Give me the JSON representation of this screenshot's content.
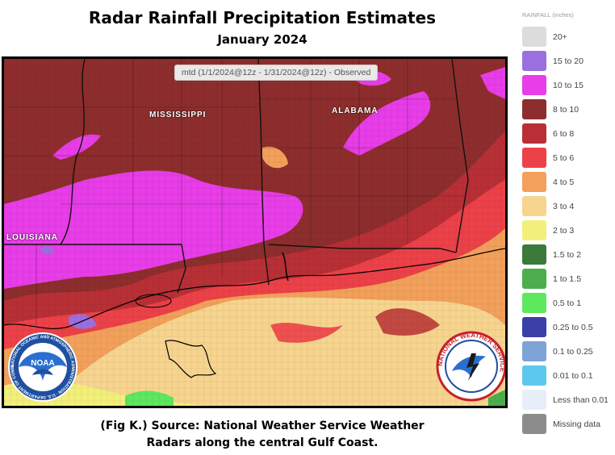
{
  "header": {
    "title": "Radar Rainfall Precipitation Estimates",
    "subtitle": "January 2024"
  },
  "map": {
    "period_label": "mtd (1/1/2024@12z - 1/31/2024@12z) - Observed",
    "state_labels": [
      "MISSISSIPPI",
      "ALABAMA",
      "LOUISIANA"
    ],
    "water_color": "#a9d9e8"
  },
  "legend": {
    "title": "RAINFALL (inches)",
    "items": [
      {
        "label": "20+",
        "color": "#dcdcdc"
      },
      {
        "label": "15 to 20",
        "color": "#9b6fe0"
      },
      {
        "label": "10 to 15",
        "color": "#e83de8"
      },
      {
        "label": "8 to 10",
        "color": "#8e2d2d"
      },
      {
        "label": "6 to 8",
        "color": "#b83035"
      },
      {
        "label": "5 to 6",
        "color": "#ec4148"
      },
      {
        "label": "4 to 5",
        "color": "#f2a05b"
      },
      {
        "label": "3 to 4",
        "color": "#f7d58f"
      },
      {
        "label": "2 to 3",
        "color": "#f2f07a"
      },
      {
        "label": "1.5 to 2",
        "color": "#3b7a3b"
      },
      {
        "label": "1 to 1.5",
        "color": "#4cae4c"
      },
      {
        "label": "0.5 to 1",
        "color": "#5ee85e"
      },
      {
        "label": "0.25 to 0.5",
        "color": "#3b3fa8"
      },
      {
        "label": "0.1 to 0.25",
        "color": "#7ea3d6"
      },
      {
        "label": "0.01 to 0.1",
        "color": "#5cc8f0"
      },
      {
        "label": "Less than 0.01",
        "color": "#e6eef8"
      },
      {
        "label": "Missing data",
        "color": "#8c8c8c"
      }
    ]
  },
  "logos": {
    "noaa_text": "NOAA",
    "noaa_ring_text": "NATIONAL OCEANIC AND ATMOSPHERIC ADMINISTRATION · U.S. DEPARTMENT OF COMMERCE",
    "nws_ring_text": "NATIONAL WEATHER SERVICE"
  },
  "caption": {
    "line1": "(Fig K.) Source: National Weather Service Weather",
    "line2": "Radars along the central Gulf Coast."
  }
}
